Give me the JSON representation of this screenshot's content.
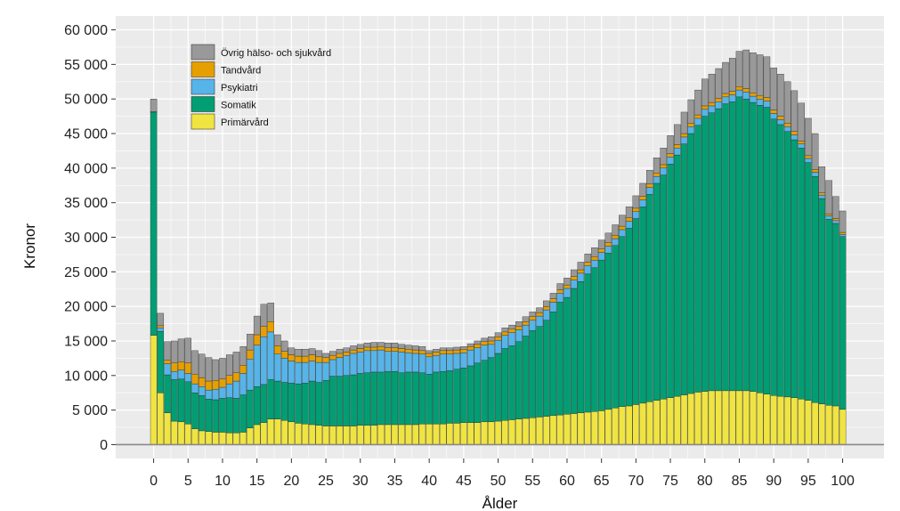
{
  "chart_data": {
    "type": "bar",
    "stacked": true,
    "title": "",
    "xlabel": "Ålder",
    "ylabel": "Kronor",
    "ylim": [
      -2000,
      62000
    ],
    "xlim": [
      -5.5,
      106
    ],
    "yticks": [
      0,
      5000,
      10000,
      15000,
      20000,
      25000,
      30000,
      35000,
      40000,
      45000,
      50000,
      55000,
      60000
    ],
    "ytick_labels": [
      "0",
      "5 000",
      "10 000",
      "15 000",
      "20 000",
      "25 000",
      "30 000",
      "35 000",
      "40 000",
      "45 000",
      "50 000",
      "55 000",
      "60 000"
    ],
    "xticks": [
      0,
      5,
      10,
      15,
      20,
      25,
      30,
      35,
      40,
      45,
      50,
      55,
      60,
      65,
      70,
      75,
      80,
      85,
      90,
      95,
      100
    ],
    "xtick_labels": [
      "0",
      "5",
      "10",
      "15",
      "20",
      "25",
      "30",
      "35",
      "40",
      "45",
      "50",
      "55",
      "60",
      "65",
      "70",
      "75",
      "80",
      "85",
      "90",
      "95",
      "100"
    ],
    "legend_position": "top-left",
    "grid": true,
    "colors": {
      "background": "#ebebeb",
      "grid": "#ffffff",
      "bar_outline": "#222222",
      "zero_line": "#888888"
    },
    "legend": [
      {
        "label": "Övrig hälso- och sjukvård",
        "color": "#999999"
      },
      {
        "label": "Tandvård",
        "color": "#e69f00"
      },
      {
        "label": "Psykiatri",
        "color": "#56b4e9"
      },
      {
        "label": "Somatik",
        "color": "#009e73"
      },
      {
        "label": "Primärvård",
        "color": "#f0e442"
      }
    ],
    "x": [
      0,
      1,
      2,
      3,
      4,
      5,
      6,
      7,
      8,
      9,
      10,
      11,
      12,
      13,
      14,
      15,
      16,
      17,
      18,
      19,
      20,
      21,
      22,
      23,
      24,
      25,
      26,
      27,
      28,
      29,
      30,
      31,
      32,
      33,
      34,
      35,
      36,
      37,
      38,
      39,
      40,
      41,
      42,
      43,
      44,
      45,
      46,
      47,
      48,
      49,
      50,
      51,
      52,
      53,
      54,
      55,
      56,
      57,
      58,
      59,
      60,
      61,
      62,
      63,
      64,
      65,
      66,
      67,
      68,
      69,
      70,
      71,
      72,
      73,
      74,
      75,
      76,
      77,
      78,
      79,
      80,
      81,
      82,
      83,
      84,
      85,
      86,
      87,
      88,
      89,
      90,
      91,
      92,
      93,
      94,
      95,
      96,
      97,
      98,
      99,
      100
    ],
    "series": [
      {
        "name": "Primärvård",
        "color": "#f0e442",
        "values": [
          15800,
          7500,
          4600,
          3400,
          3300,
          3000,
          2300,
          2000,
          1900,
          1800,
          1800,
          1700,
          1700,
          1800,
          2400,
          2900,
          3200,
          3700,
          3700,
          3500,
          3300,
          3100,
          3000,
          2900,
          2800,
          2700,
          2700,
          2700,
          2700,
          2700,
          2800,
          2800,
          2800,
          2900,
          2900,
          2900,
          2900,
          2900,
          2900,
          3000,
          3000,
          3000,
          3000,
          3100,
          3100,
          3200,
          3200,
          3200,
          3300,
          3300,
          3400,
          3500,
          3600,
          3700,
          3800,
          3900,
          4000,
          4100,
          4200,
          4300,
          4400,
          4500,
          4600,
          4700,
          4800,
          4900,
          5100,
          5300,
          5500,
          5600,
          5800,
          6000,
          6200,
          6400,
          6600,
          6800,
          7000,
          7200,
          7400,
          7600,
          7700,
          7800,
          7800,
          7800,
          7800,
          7800,
          7800,
          7700,
          7500,
          7300,
          7100,
          7000,
          6900,
          6800,
          6600,
          6400,
          6100,
          5900,
          5700,
          5600,
          5100
        ]
      },
      {
        "name": "Somatik",
        "color": "#009e73",
        "values": [
          32300,
          8900,
          5500,
          6000,
          6200,
          6100,
          5200,
          5100,
          4700,
          4700,
          4900,
          5100,
          5000,
          5400,
          5500,
          5500,
          5500,
          5700,
          5500,
          5500,
          5600,
          5700,
          5900,
          6300,
          6200,
          6600,
          7200,
          7200,
          7300,
          7400,
          7500,
          7600,
          7700,
          7600,
          7700,
          7700,
          7500,
          7600,
          7600,
          7400,
          7200,
          7500,
          7600,
          7600,
          7800,
          7900,
          8200,
          8600,
          8900,
          9300,
          9800,
          10400,
          10700,
          11200,
          11900,
          12600,
          13100,
          13900,
          15000,
          16300,
          16900,
          18100,
          19000,
          20000,
          20800,
          21800,
          22600,
          23500,
          24600,
          25700,
          26900,
          28400,
          30000,
          31400,
          32400,
          33800,
          34900,
          36300,
          37600,
          38600,
          39800,
          40200,
          40800,
          41500,
          41800,
          42500,
          42200,
          41800,
          41600,
          41500,
          40000,
          39300,
          38400,
          37300,
          36300,
          34400,
          32700,
          29700,
          26900,
          26400,
          25000
        ]
      },
      {
        "name": "Psykiatri",
        "color": "#56b4e9",
        "values": [
          50,
          500,
          1600,
          1200,
          1300,
          1200,
          1300,
          1300,
          1300,
          1500,
          1600,
          2000,
          2500,
          3100,
          4500,
          6000,
          6900,
          6900,
          3900,
          3500,
          3200,
          3100,
          3000,
          2900,
          2900,
          2600,
          2400,
          2700,
          2900,
          3100,
          3100,
          3200,
          3100,
          3200,
          2900,
          2900,
          3000,
          2800,
          2700,
          2700,
          2500,
          2400,
          2500,
          2400,
          2300,
          2200,
          2300,
          2200,
          2200,
          1900,
          1900,
          1900,
          1900,
          1700,
          1600,
          1500,
          1500,
          1500,
          1400,
          1300,
          1300,
          1200,
          1200,
          1200,
          1100,
          1100,
          1000,
          1000,
          1000,
          1000,
          1000,
          1000,
          1000,
          1000,
          1000,
          1000,
          1000,
          1000,
          1000,
          1000,
          1000,
          1000,
          1000,
          1000,
          1000,
          1000,
          1000,
          900,
          900,
          900,
          800,
          700,
          700,
          700,
          600,
          600,
          600,
          500,
          500,
          400,
          300
        ]
      },
      {
        "name": "Tandvård",
        "color": "#e69f00",
        "values": [
          0,
          300,
          500,
          1200,
          1200,
          1500,
          1400,
          1300,
          1300,
          1300,
          1200,
          1200,
          1200,
          1200,
          1300,
          1500,
          1500,
          1500,
          1200,
          1000,
          900,
          900,
          900,
          900,
          800,
          700,
          600,
          600,
          500,
          500,
          500,
          500,
          500,
          500,
          500,
          500,
          500,
          500,
          500,
          500,
          500,
          500,
          500,
          500,
          500,
          500,
          500,
          500,
          500,
          500,
          500,
          500,
          500,
          500,
          500,
          500,
          500,
          500,
          500,
          500,
          500,
          500,
          500,
          500,
          500,
          500,
          500,
          500,
          500,
          500,
          500,
          500,
          500,
          500,
          500,
          500,
          500,
          500,
          500,
          500,
          500,
          500,
          500,
          500,
          500,
          500,
          500,
          500,
          500,
          500,
          500,
          500,
          500,
          500,
          400,
          400,
          400,
          300,
          300,
          300,
          300
        ]
      },
      {
        "name": "Övrig hälso- och sjukvård",
        "color": "#999999",
        "values": [
          1850,
          1800,
          2700,
          3200,
          3300,
          3600,
          3400,
          3400,
          3400,
          3000,
          3000,
          3000,
          3000,
          2700,
          2300,
          2700,
          3200,
          2700,
          1600,
          1500,
          1000,
          1000,
          1000,
          900,
          900,
          600,
          600,
          600,
          600,
          600,
          600,
          600,
          700,
          600,
          700,
          700,
          600,
          600,
          600,
          600,
          400,
          400,
          400,
          400,
          400,
          400,
          400,
          500,
          500,
          600,
          600,
          600,
          600,
          700,
          700,
          700,
          700,
          800,
          800,
          900,
          1000,
          1000,
          1100,
          1200,
          1300,
          1300,
          1400,
          1500,
          1600,
          1600,
          1800,
          1900,
          2000,
          2200,
          2400,
          2600,
          2900,
          3100,
          3400,
          3600,
          3900,
          4100,
          4300,
          4500,
          4800,
          5100,
          5600,
          5800,
          5900,
          5900,
          6100,
          6100,
          6000,
          5900,
          5500,
          5400,
          5200,
          3800,
          4800,
          3200,
          3100
        ]
      }
    ]
  }
}
